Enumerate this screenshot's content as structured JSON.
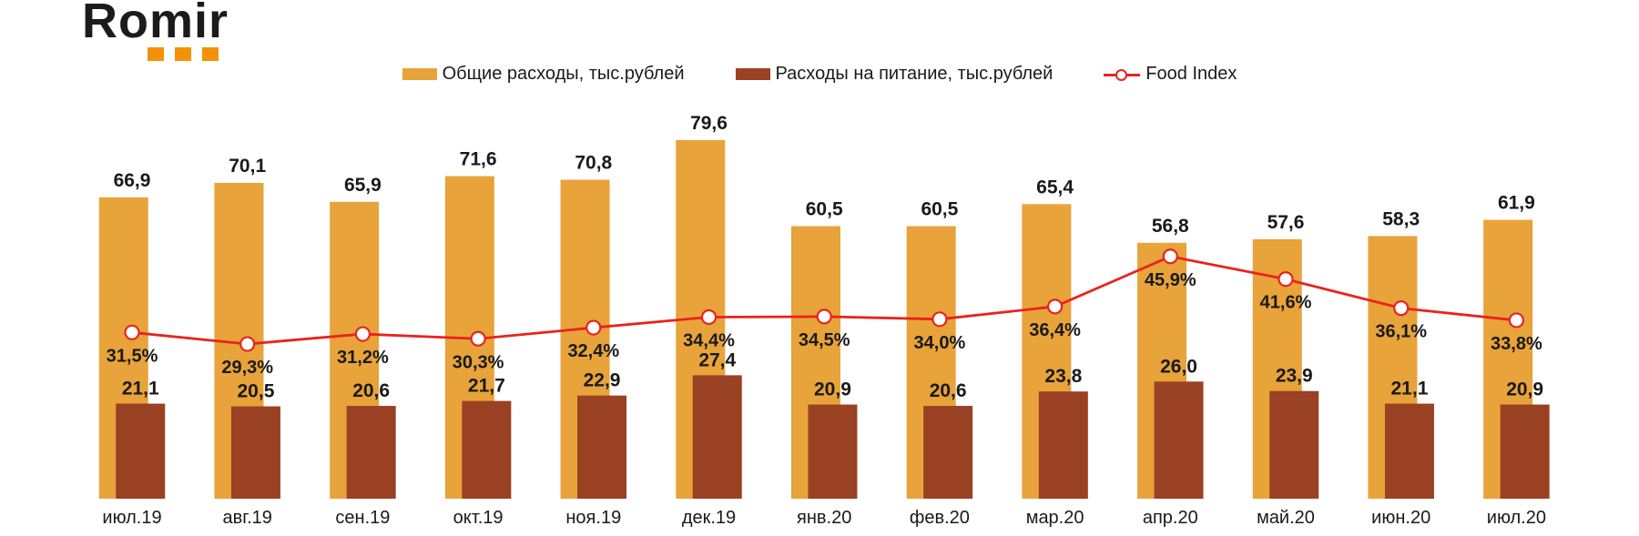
{
  "logo": {
    "text": "Romir",
    "square_color": "#F39208",
    "squares": 3
  },
  "legend": {
    "items": [
      {
        "label": "Общие расходы, тыс.рублей",
        "swatch": "bar",
        "color": "#E8A33A"
      },
      {
        "label": "Расходы на питание, тыс.рублей",
        "swatch": "bar",
        "color": "#9A4123"
      },
      {
        "label": "Food Index",
        "swatch": "line",
        "color": "#E8231E"
      }
    ]
  },
  "chart_data": {
    "type": "bar",
    "title": "",
    "xlabel": "",
    "ylabel": "",
    "grid": false,
    "legend_position": "top",
    "categories": [
      "июл.19",
      "авг.19",
      "сен.19",
      "окт.19",
      "ноя.19",
      "дек.19",
      "янв.20",
      "фев.20",
      "мар.20",
      "апр.20",
      "май.20",
      "июн.20",
      "июл.20"
    ],
    "ylim": [
      0,
      85
    ],
    "y2lim": [
      0,
      72
    ],
    "series": [
      {
        "name": "Общие расходы, тыс.рублей",
        "type": "bar",
        "axis": "primary",
        "color": "#E8A33A",
        "values": [
          66.9,
          70.1,
          65.9,
          71.6,
          70.8,
          79.6,
          60.5,
          60.5,
          65.4,
          56.8,
          57.6,
          58.3,
          61.9
        ],
        "labels": [
          "66,9",
          "70,1",
          "65,9",
          "71,6",
          "70,8",
          "79,6",
          "60,5",
          "60,5",
          "65,4",
          "56,8",
          "57,6",
          "58,3",
          "61,9"
        ]
      },
      {
        "name": "Расходы на питание, тыс.рублей",
        "type": "bar",
        "axis": "primary",
        "color": "#9A4123",
        "values": [
          21.1,
          20.5,
          20.6,
          21.7,
          22.9,
          27.4,
          20.9,
          20.6,
          23.8,
          26.0,
          23.9,
          21.1,
          20.9
        ],
        "labels": [
          "21,1",
          "20,5",
          "20,6",
          "21,7",
          "22,9",
          "27,4",
          "20,9",
          "20,6",
          "23,8",
          "26,0",
          "23,9",
          "21,1",
          "20,9"
        ]
      },
      {
        "name": "Food Index",
        "type": "line",
        "axis": "secondary",
        "color": "#E8231E",
        "values": [
          31.5,
          29.3,
          31.2,
          30.3,
          32.4,
          34.4,
          34.5,
          34.0,
          36.4,
          45.9,
          41.6,
          36.1,
          33.8
        ],
        "labels": [
          "31,5%",
          "29,3%",
          "31,2%",
          "30,3%",
          "32,4%",
          "34,4%",
          "34,5%",
          "34,0%",
          "36,4%",
          "45,9%",
          "41,6%",
          "36,1%",
          "33,8%"
        ]
      }
    ]
  }
}
